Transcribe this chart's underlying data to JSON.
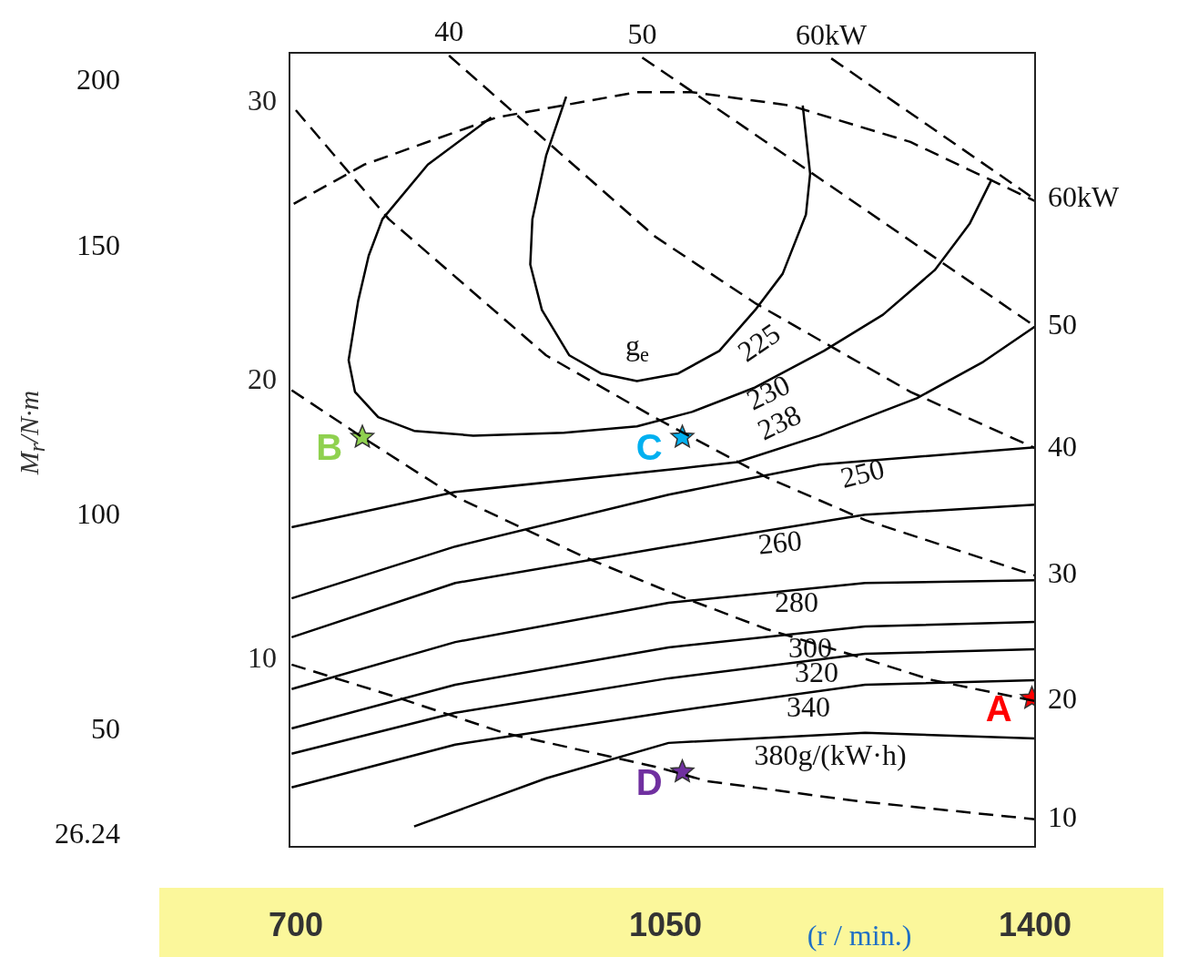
{
  "chart_data": {
    "type": "line",
    "xlabel": "(r / min.)",
    "xlim": [
      694,
      1400
    ],
    "xticks": [
      700,
      1050,
      1400
    ],
    "ylim": [
      3.3,
      31.8
    ],
    "yticks": [
      10,
      20,
      30
    ],
    "grid": false,
    "legend": false,
    "series": [
      {
        "color": "#000000",
        "line_style": "solid",
        "marker": "none",
        "x": [
          956,
          937,
          924,
          922,
          933,
          959,
          989,
          1023,
          1062,
          1101,
          1135,
          1161,
          1183,
          1187,
          1180
        ],
        "values": [
          30.23,
          28.11,
          25.83,
          24.2,
          22.57,
          20.94,
          20.29,
          20.02,
          20.29,
          21.1,
          22.57,
          23.87,
          25.99,
          27.46,
          29.91
        ]
      },
      {
        "color": "#000000",
        "line_style": "solid",
        "marker": "none",
        "x": [
          885,
          825,
          782,
          769,
          759,
          750,
          756,
          778,
          812,
          868,
          954,
          1023,
          1075,
          1135,
          1200,
          1256,
          1305,
          1338,
          1359
        ],
        "values": [
          29.48,
          27.79,
          25.83,
          24.52,
          22.89,
          20.77,
          19.63,
          18.72,
          18.23,
          18.06,
          18.16,
          18.39,
          18.91,
          19.79,
          21.1,
          22.4,
          24.0,
          25.66,
          27.26
        ]
      },
      {
        "color": "#000000",
        "line_style": "solid",
        "marker": "none",
        "x": [
          696,
          851,
          1066,
          1118,
          1196,
          1288,
          1351,
          1400
        ],
        "values": [
          14.77,
          16.04,
          16.89,
          17.11,
          18.06,
          19.4,
          20.71,
          21.98
        ]
      },
      {
        "color": "#000000",
        "line_style": "solid",
        "marker": "none",
        "x": [
          696,
          851,
          1053,
          1196,
          1400
        ],
        "values": [
          12.22,
          14.08,
          15.94,
          17.02,
          17.64
        ]
      },
      {
        "color": "#000000",
        "line_style": "solid",
        "marker": "none",
        "x": [
          696,
          851,
          1053,
          1239,
          1400
        ],
        "values": [
          10.82,
          12.77,
          14.08,
          15.22,
          15.58
        ]
      },
      {
        "color": "#000000",
        "line_style": "solid",
        "marker": "none",
        "x": [
          696,
          851,
          1053,
          1239,
          1400
        ],
        "values": [
          8.96,
          10.65,
          12.06,
          12.77,
          12.87
        ]
      },
      {
        "color": "#000000",
        "line_style": "solid",
        "marker": "none",
        "x": [
          696,
          851,
          1053,
          1239,
          1400
        ],
        "values": [
          7.55,
          9.12,
          10.46,
          11.21,
          11.37
        ]
      },
      {
        "color": "#000000",
        "line_style": "solid",
        "marker": "none",
        "x": [
          696,
          851,
          1053,
          1239,
          1400
        ],
        "values": [
          6.64,
          8.11,
          9.35,
          10.23,
          10.39
        ]
      },
      {
        "color": "#000000",
        "line_style": "solid",
        "marker": "none",
        "x": [
          696,
          851,
          1053,
          1239,
          1400
        ],
        "values": [
          5.43,
          6.97,
          8.14,
          9.12,
          9.28
        ]
      },
      {
        "color": "#000000",
        "line_style": "solid",
        "marker": "none",
        "x": [
          812,
          937,
          1053,
          1239,
          1400
        ],
        "values": [
          4.03,
          5.76,
          7.03,
          7.39,
          7.19
        ]
      },
      {
        "color": "#000000",
        "line_style": "dashed",
        "marker": "none",
        "x": [
          698,
          765,
          890,
          1023,
          1075,
          1168,
          1282,
          1400
        ],
        "values": [
          26.38,
          27.79,
          29.48,
          30.39,
          30.39,
          29.91,
          28.6,
          26.48
        ]
      },
      {
        "name": "60kW",
        "color": "#000000",
        "line_style": "dashed",
        "marker": "none",
        "x": [
          1207,
          1400
        ],
        "values": [
          31.6,
          26.54
        ]
      },
      {
        "name": "50",
        "color": "#000000",
        "line_style": "dashed",
        "marker": "none",
        "x": [
          1028,
          1196,
          1400
        ],
        "values": [
          31.63,
          27.29,
          21.98
        ]
      },
      {
        "name": "40",
        "color": "#000000",
        "line_style": "dashed",
        "marker": "none",
        "x": [
          845,
          1040,
          1136,
          1282,
          1400
        ],
        "values": [
          31.7,
          25.21,
          22.79,
          19.63,
          17.61
        ]
      },
      {
        "name": "30",
        "color": "#000000",
        "line_style": "dashed",
        "marker": "none",
        "x": [
          700,
          788,
          937,
          1038,
          1146,
          1239,
          1400
        ],
        "values": [
          29.74,
          25.83,
          20.94,
          18.75,
          16.56,
          15.03,
          13.04
        ]
      },
      {
        "name": "20",
        "color": "#000000",
        "line_style": "dashed",
        "marker": "none",
        "x": [
          696,
          763,
          851,
          974,
          1064,
          1146,
          1232,
          1303,
          1400
        ],
        "values": [
          19.69,
          18.0,
          15.87,
          13.69,
          12.29,
          11.11,
          10.13,
          9.28,
          8.53
        ]
      },
      {
        "name": "10",
        "color": "#000000",
        "line_style": "dashed",
        "marker": "none",
        "x": [
          696,
          788,
          897,
          1043,
          1089,
          1232,
          1400
        ],
        "values": [
          9.84,
          8.76,
          7.39,
          6.15,
          5.66,
          4.94,
          4.29
        ]
      },
      {
        "type": "scatter",
        "name": "A",
        "color": "#ff0000",
        "marker": "star",
        "x": [
          1397
        ],
        "values": [
          8.63
        ]
      },
      {
        "type": "scatter",
        "name": "B",
        "color": "#8fd14f",
        "marker": "star",
        "x": [
          763
        ],
        "values": [
          18.0
        ]
      },
      {
        "type": "scatter",
        "name": "C",
        "color": "#00b0f0",
        "marker": "star",
        "x": [
          1066
        ],
        "values": [
          18.0
        ]
      },
      {
        "type": "scatter",
        "name": "D",
        "color": "#7030a0",
        "marker": "star",
        "x": [
          1066
        ],
        "values": [
          5.99
        ]
      }
    ],
    "annotations": [
      {
        "text": "40",
        "x": 845,
        "y": 31.7
      },
      {
        "text": "50",
        "x": 1028,
        "y": 31.63
      },
      {
        "text": "60kW",
        "x": 1207,
        "y": 31.6
      },
      "g$_{e}$",
      "225",
      "230",
      "238",
      "250",
      "260",
      "280",
      "300",
      "320",
      "340",
      "380g/(kW·h)",
      "200",
      "150",
      "100",
      "50",
      "26.24",
      "M$_{r}$/N·m"
    ]
  }
}
